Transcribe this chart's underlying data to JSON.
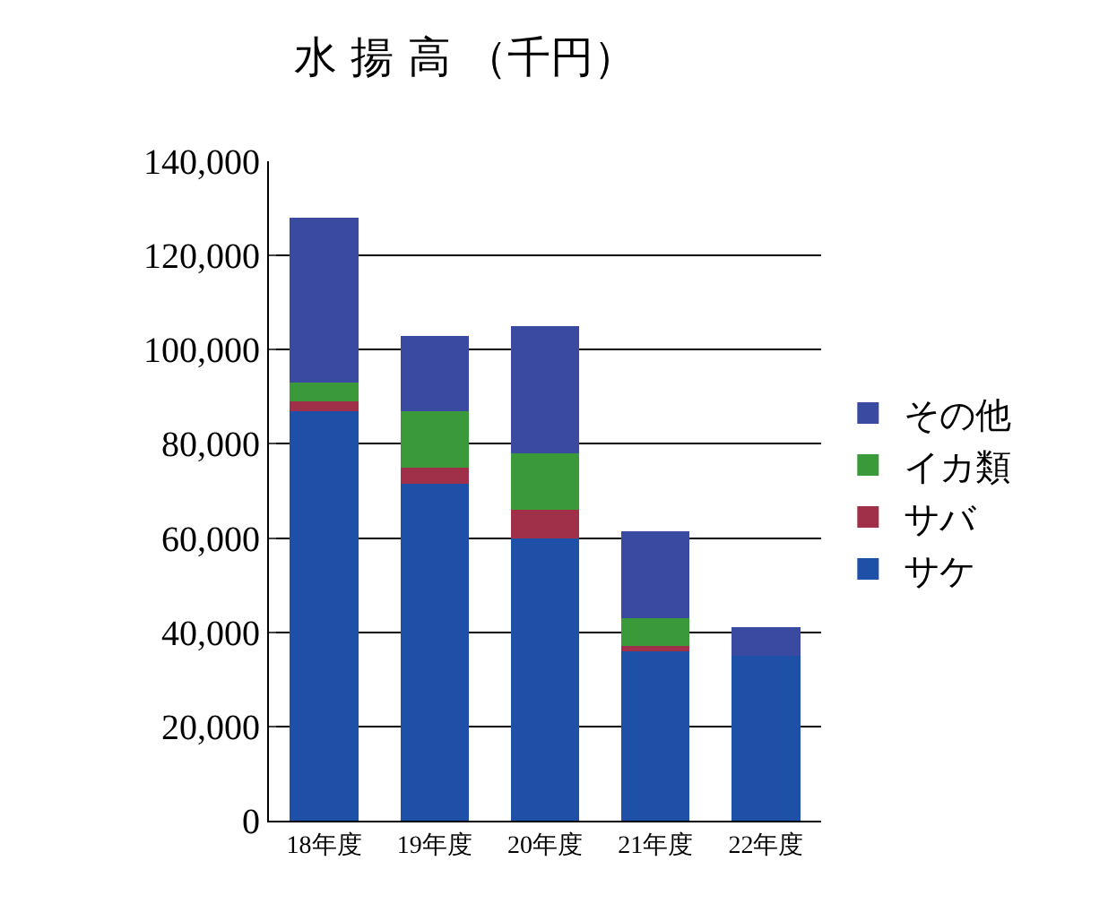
{
  "chart_data": {
    "type": "bar",
    "title": "水 揚 高 （千円）",
    "stacked": true,
    "categories": [
      "18年度",
      "19年度",
      "20年度",
      "21年度",
      "22年度"
    ],
    "series": [
      {
        "name": "サケ",
        "color": "#1f50a8",
        "values": [
          87000,
          71500,
          60000,
          36000,
          35000
        ]
      },
      {
        "name": "サバ",
        "color": "#a0304a",
        "values": [
          2000,
          3500,
          6000,
          1000,
          0
        ]
      },
      {
        "name": "イカ類",
        "color": "#3a9a3a",
        "values": [
          4000,
          12000,
          12000,
          6000,
          0
        ]
      },
      {
        "name": "その他",
        "color": "#3a4aa0",
        "values": [
          35000,
          16000,
          27000,
          18500,
          6000
        ]
      }
    ],
    "ylim": [
      0,
      140000
    ],
    "yticks": [
      {
        "value": 0,
        "label": "0"
      },
      {
        "value": 20000,
        "label": "20,000"
      },
      {
        "value": 40000,
        "label": "40,000"
      },
      {
        "value": 60000,
        "label": "60,000"
      },
      {
        "value": 80000,
        "label": "80,000"
      },
      {
        "value": 100000,
        "label": "100,000"
      },
      {
        "value": 120000,
        "label": "120,000"
      },
      {
        "value": 140000,
        "label": "140,000"
      }
    ],
    "grid": "y",
    "legend": "right"
  }
}
